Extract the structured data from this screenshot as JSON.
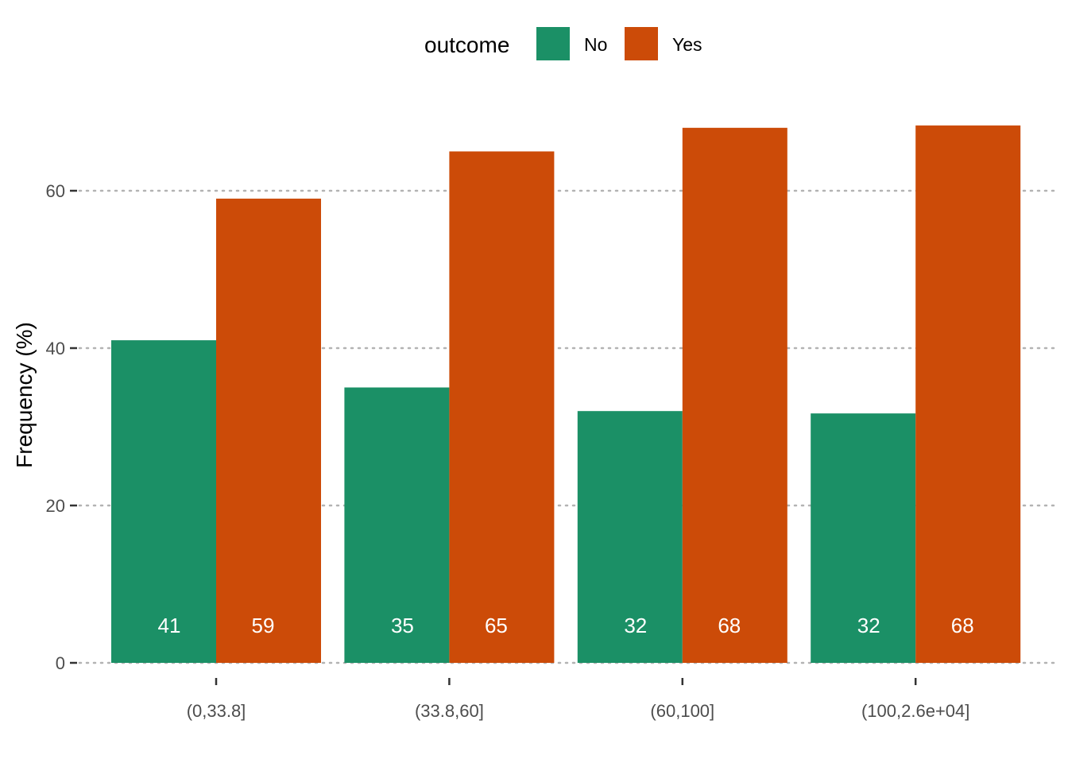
{
  "chart_data": {
    "type": "bar",
    "categories": [
      "(0,33.8]",
      "(33.8,60]",
      "(60,100]",
      "(100,2.6e+04]"
    ],
    "series": [
      {
        "name": "No",
        "color": "#1b9066",
        "values": [
          41,
          35,
          32,
          31.7
        ],
        "labels": [
          "41",
          "35",
          "32",
          "32"
        ]
      },
      {
        "name": "Yes",
        "color": "#cc4b08",
        "values": [
          59,
          65,
          68,
          68.3
        ],
        "labels": [
          "59",
          "65",
          "68",
          "68"
        ]
      }
    ],
    "legend_title": "outcome",
    "legend_position": "top",
    "xlabel": "",
    "ylabel": "Frequency (%)",
    "ylim": [
      0,
      70
    ],
    "yticks": [
      0,
      20,
      40,
      60
    ],
    "grid": "horizontal dotted"
  }
}
